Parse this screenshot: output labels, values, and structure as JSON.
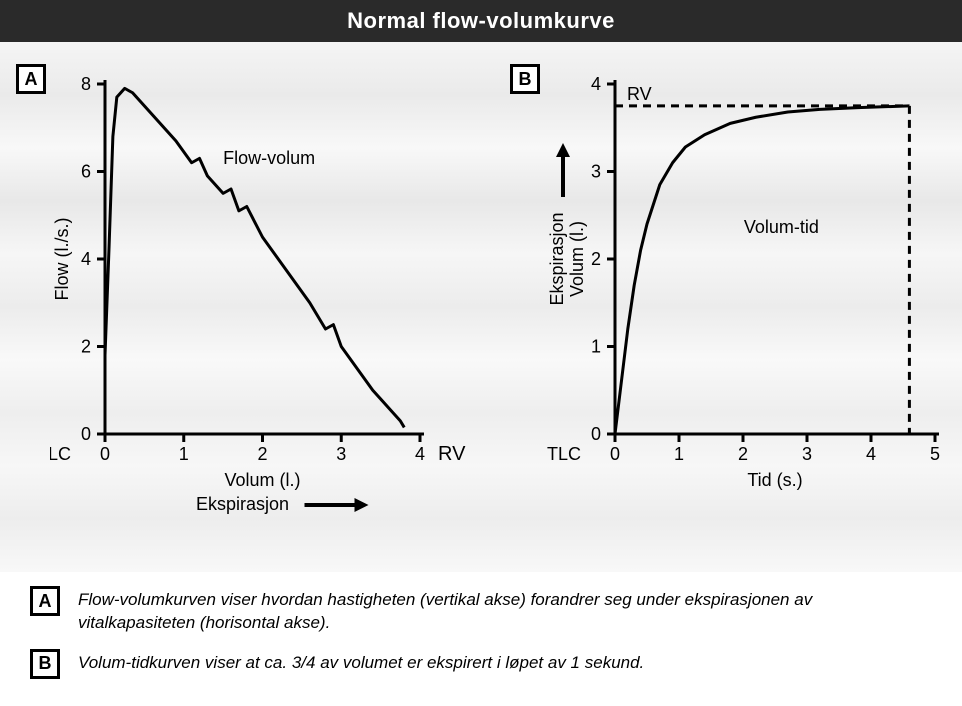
{
  "title": "Normal flow-volumkurve",
  "colors": {
    "title_bg": "#2a2a2a",
    "title_fg": "#ffffff",
    "axis": "#000000",
    "curve": "#000000",
    "panel_bg_tones": [
      "#f5f5f5",
      "#eaeaea",
      "#f8f8f8",
      "#e8e8e8",
      "#f6f6f6",
      "#ececec"
    ]
  },
  "panelA": {
    "badge": "A",
    "type": "line",
    "curve_label": "Flow-volum",
    "y_axis": {
      "label": "Flow (l./s.)",
      "min": 0,
      "max": 8,
      "ticks": [
        0,
        2,
        4,
        6,
        8
      ]
    },
    "x_axis": {
      "label1": "Volum (l.)",
      "label2": "Ekspirasjon",
      "min": 0,
      "max": 4,
      "ticks": [
        0,
        1,
        2,
        3,
        4
      ],
      "left_label": "TLC",
      "right_label": "RV"
    },
    "curve_points": [
      [
        0.0,
        1.8
      ],
      [
        0.05,
        4.2
      ],
      [
        0.1,
        6.8
      ],
      [
        0.15,
        7.7
      ],
      [
        0.25,
        7.9
      ],
      [
        0.35,
        7.8
      ],
      [
        0.5,
        7.5
      ],
      [
        0.7,
        7.1
      ],
      [
        0.9,
        6.7
      ],
      [
        1.1,
        6.2
      ],
      [
        1.2,
        6.3
      ],
      [
        1.3,
        5.9
      ],
      [
        1.5,
        5.5
      ],
      [
        1.6,
        5.6
      ],
      [
        1.7,
        5.1
      ],
      [
        1.8,
        5.2
      ],
      [
        2.0,
        4.5
      ],
      [
        2.2,
        4.0
      ],
      [
        2.4,
        3.5
      ],
      [
        2.6,
        3.0
      ],
      [
        2.8,
        2.4
      ],
      [
        2.9,
        2.5
      ],
      [
        3.0,
        2.0
      ],
      [
        3.2,
        1.5
      ],
      [
        3.4,
        1.0
      ],
      [
        3.6,
        0.6
      ],
      [
        3.75,
        0.3
      ],
      [
        3.8,
        0.15
      ]
    ],
    "curve_width": 3
  },
  "panelB": {
    "badge": "B",
    "type": "line",
    "curve_label": "Volum-tid",
    "rv_label": "RV",
    "y_axis": {
      "label1": "Ekspirasjon",
      "label2": "Volum (l.)",
      "min": 0,
      "max": 4,
      "ticks": [
        0,
        1,
        2,
        3,
        4
      ]
    },
    "x_axis": {
      "label": "Tid (s.)",
      "min": 0,
      "max": 5,
      "ticks": [
        0,
        1,
        2,
        3,
        4,
        5
      ],
      "left_label": "TLC"
    },
    "dash_y": 3.75,
    "dash_vert_x": 4.6,
    "curve_points": [
      [
        0.0,
        0.0
      ],
      [
        0.1,
        0.6
      ],
      [
        0.2,
        1.2
      ],
      [
        0.3,
        1.7
      ],
      [
        0.4,
        2.1
      ],
      [
        0.5,
        2.4
      ],
      [
        0.7,
        2.85
      ],
      [
        0.9,
        3.1
      ],
      [
        1.1,
        3.28
      ],
      [
        1.4,
        3.42
      ],
      [
        1.8,
        3.55
      ],
      [
        2.2,
        3.62
      ],
      [
        2.7,
        3.68
      ],
      [
        3.2,
        3.71
      ],
      [
        3.8,
        3.73
      ],
      [
        4.6,
        3.75
      ]
    ],
    "curve_width": 3,
    "dash_pattern": "8 6"
  },
  "captions": {
    "A": "Flow-volumkurven viser hvordan hastigheten (vertikal akse) forandrer seg under ekspirasjonen av vitalkapasiteten (horisontal akse).",
    "B": "Volum-tidkurven viser at ca. 3/4 av volumet er ekspirert i løpet av 1 sekund."
  }
}
